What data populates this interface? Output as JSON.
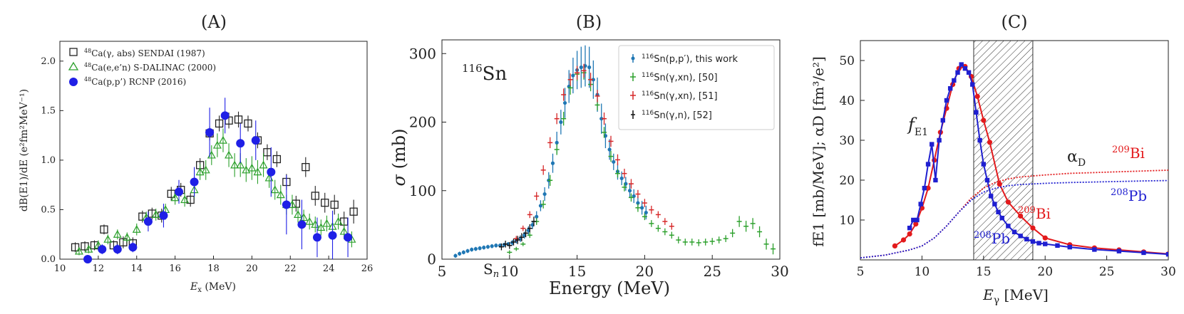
{
  "chart_data": [
    {
      "id": "A",
      "type": "scatter",
      "title": "(A)",
      "xlabel": "Ex (MeV)",
      "xlabel_main": "E",
      "xlabel_sub": "x",
      "xlabel_unit": " (MeV)",
      "ylabel": "dB(E1)/dE (e²fm²MeV⁻¹)",
      "xlim": [
        10,
        26
      ],
      "ylim": [
        0,
        2.2
      ],
      "xticks": [
        "10",
        "12",
        "14",
        "16",
        "18",
        "20",
        "22",
        "24",
        "26"
      ],
      "yticks": [
        "0.0",
        "0.5",
        "1.0",
        "1.5",
        "2.0"
      ],
      "legend_position": "top-left",
      "series": [
        {
          "name": "48Ca(γ,abs) SENDAI (1987)",
          "label_sup": "48",
          "label_text": "Ca(γ, abs) SENDAI (1987)",
          "marker": "open-square",
          "color": "#222222",
          "x": [
            10.8,
            11.3,
            11.8,
            12.3,
            12.8,
            13.3,
            13.8,
            14.3,
            14.8,
            15.3,
            15.8,
            16.3,
            16.8,
            17.3,
            17.8,
            18.3,
            18.8,
            19.3,
            19.8,
            20.3,
            20.8,
            21.3,
            21.8,
            22.3,
            22.8,
            23.3,
            23.8,
            24.3,
            24.8,
            25.3
          ],
          "y": [
            0.12,
            0.13,
            0.14,
            0.3,
            0.14,
            0.17,
            0.16,
            0.43,
            0.46,
            0.44,
            0.66,
            0.7,
            0.6,
            0.95,
            1.27,
            1.37,
            1.4,
            1.41,
            1.37,
            1.2,
            1.08,
            1.01,
            0.78,
            0.56,
            0.93,
            0.64,
            0.57,
            0.55,
            0.38,
            0.48
          ],
          "err": [
            0.05,
            0.05,
            0.05,
            0.05,
            0.05,
            0.06,
            0.06,
            0.06,
            0.06,
            0.07,
            0.07,
            0.07,
            0.07,
            0.07,
            0.07,
            0.08,
            0.08,
            0.08,
            0.08,
            0.08,
            0.08,
            0.08,
            0.08,
            0.08,
            0.1,
            0.1,
            0.1,
            0.1,
            0.1,
            0.12
          ]
        },
        {
          "name": "48Ca(e,e'n) S-DALINAC (2000)",
          "label_sup": "48",
          "label_text": "Ca(e,e’n) S-DALINAC (2000)",
          "marker": "open-triangle",
          "color": "#2ca02c",
          "x": [
            11.0,
            11.5,
            12.0,
            12.5,
            13.0,
            13.5,
            14.0,
            14.5,
            15.0,
            15.5,
            16.0,
            16.5,
            17.0,
            17.3,
            17.6,
            17.9,
            18.2,
            18.5,
            18.8,
            19.1,
            19.4,
            19.7,
            20.0,
            20.3,
            20.6,
            20.9,
            21.2,
            21.5,
            21.8,
            22.1,
            22.4,
            22.7,
            23.0,
            23.3,
            23.6,
            23.9,
            24.2,
            24.5,
            24.8,
            25.2
          ],
          "y": [
            0.08,
            0.1,
            0.14,
            0.2,
            0.25,
            0.22,
            0.3,
            0.42,
            0.45,
            0.5,
            0.62,
            0.6,
            0.7,
            0.88,
            0.9,
            1.05,
            1.15,
            1.2,
            1.05,
            0.95,
            0.95,
            0.9,
            0.92,
            0.88,
            0.95,
            0.82,
            0.7,
            0.65,
            0.55,
            0.55,
            0.45,
            0.42,
            0.38,
            0.35,
            0.32,
            0.36,
            0.33,
            0.38,
            0.28,
            0.2
          ],
          "err": [
            0.04,
            0.04,
            0.05,
            0.05,
            0.05,
            0.05,
            0.06,
            0.06,
            0.06,
            0.06,
            0.07,
            0.07,
            0.08,
            0.08,
            0.1,
            0.1,
            0.12,
            0.12,
            0.12,
            0.12,
            0.12,
            0.12,
            0.12,
            0.12,
            0.12,
            0.1,
            0.1,
            0.1,
            0.1,
            0.1,
            0.08,
            0.08,
            0.08,
            0.08,
            0.08,
            0.08,
            0.08,
            0.08,
            0.08,
            0.08
          ]
        },
        {
          "name": "48Ca(p,p') RCNP (2016)",
          "label_sup": "48",
          "label_text": "Ca(p,p’) RCNP (2016)",
          "marker": "filled-circle",
          "color": "#1f1fe6",
          "x": [
            11.45,
            12.2,
            13.0,
            13.8,
            14.6,
            15.4,
            16.2,
            17.0,
            17.8,
            18.6,
            19.4,
            20.2,
            21.0,
            21.8,
            22.6,
            23.4,
            24.2,
            25.0
          ],
          "y": [
            0.0,
            0.1,
            0.1,
            0.12,
            0.38,
            0.44,
            0.68,
            0.78,
            1.28,
            1.45,
            1.17,
            1.2,
            0.88,
            0.55,
            0.35,
            0.22,
            0.24,
            0.22
          ],
          "err": [
            0.03,
            0.05,
            0.05,
            0.05,
            0.1,
            0.12,
            0.12,
            0.15,
            0.25,
            0.18,
            0.2,
            0.2,
            0.25,
            0.3,
            0.25,
            0.2,
            0.25,
            0.2
          ]
        }
      ]
    },
    {
      "id": "B",
      "type": "scatter",
      "title": "(B)",
      "annotation": "116Sn",
      "annotation_sup": "116",
      "annotation_text": "Sn",
      "xlabel": "Energy (MeV)",
      "ylabel": "σ (mb)",
      "ylabel_symbol": "σ",
      "ylabel_unit": " (mb)",
      "sn_label": "Sn",
      "sn_main": "S",
      "sn_sub": "n",
      "xlim": [
        5,
        30
      ],
      "ylim": [
        0,
        320
      ],
      "xticks": [
        "5",
        "10",
        "15",
        "20",
        "25",
        "30"
      ],
      "yticks": [
        "0",
        "100",
        "200",
        "300"
      ],
      "legend_position": "top-right",
      "series": [
        {
          "name": "116Sn(p,p′), this work",
          "label_sup": "116",
          "label_text": "Sn(p,p′), this work",
          "color": "#1f77b4",
          "x": [
            6.0,
            6.3,
            6.6,
            6.9,
            7.2,
            7.5,
            7.8,
            8.1,
            8.4,
            8.7,
            9.0,
            9.3,
            9.6,
            9.9,
            10.2,
            10.5,
            10.8,
            11.1,
            11.4,
            11.7,
            12.0,
            12.3,
            12.6,
            12.9,
            13.2,
            13.5,
            13.8,
            14.1,
            14.4,
            14.7,
            15.0,
            15.3,
            15.6,
            15.9,
            16.2,
            16.5,
            16.8,
            17.1,
            17.4,
            17.7,
            18.0,
            18.3,
            18.6,
            18.9,
            19.2,
            19.5,
            19.8,
            20.1
          ],
          "y": [
            5,
            8,
            10,
            12,
            14,
            15,
            16,
            17,
            18,
            19,
            20,
            20,
            21,
            22,
            24,
            27,
            30,
            35,
            42,
            50,
            62,
            78,
            95,
            115,
            140,
            170,
            200,
            228,
            252,
            268,
            276,
            280,
            282,
            280,
            262,
            240,
            205,
            180,
            160,
            142,
            128,
            118,
            110,
            100,
            92,
            82,
            75,
            68
          ],
          "err": [
            3,
            3,
            3,
            3,
            3,
            3,
            3,
            3,
            3,
            3,
            3,
            3,
            3,
            3,
            4,
            4,
            5,
            5,
            6,
            6,
            8,
            8,
            10,
            12,
            14,
            16,
            18,
            22,
            24,
            26,
            28,
            30,
            30,
            30,
            28,
            25,
            22,
            18,
            15,
            12,
            12,
            10,
            10,
            10,
            10,
            10,
            10,
            10
          ]
        },
        {
          "name": "116Sn(γ,xn), [50]",
          "label_sup": "116",
          "label_text": "Sn(γ,xn), [50]",
          "color": "#2ca02c",
          "x": [
            10.0,
            10.5,
            11.0,
            11.5,
            12.0,
            12.5,
            13.0,
            13.5,
            14.0,
            14.5,
            15.0,
            15.5,
            16.0,
            16.5,
            17.0,
            17.5,
            18.0,
            18.5,
            19.0,
            19.5,
            20.0,
            20.5,
            21.0,
            21.5,
            22.0,
            22.5,
            23.0,
            23.5,
            24.0,
            24.5,
            25.0,
            25.5,
            26.0,
            26.5,
            27.0,
            27.5,
            28.0,
            28.5,
            29.0,
            29.5
          ],
          "y": [
            10,
            15,
            22,
            35,
            55,
            80,
            115,
            160,
            205,
            250,
            270,
            272,
            255,
            225,
            185,
            150,
            125,
            105,
            90,
            75,
            62,
            52,
            45,
            40,
            35,
            28,
            25,
            25,
            24,
            25,
            26,
            28,
            30,
            38,
            55,
            48,
            52,
            40,
            22,
            15
          ],
          "err": [
            3,
            3,
            3,
            4,
            5,
            6,
            8,
            8,
            10,
            10,
            10,
            10,
            10,
            8,
            8,
            8,
            6,
            6,
            6,
            6,
            5,
            5,
            5,
            5,
            5,
            5,
            5,
            5,
            5,
            5,
            5,
            5,
            5,
            6,
            8,
            8,
            8,
            8,
            8,
            8
          ]
        },
        {
          "name": "116Sn(γ,xn), [51]",
          "label_sup": "116",
          "label_text": "Sn(γ,xn), [51]",
          "color": "#d62728",
          "x": [
            10.5,
            11.0,
            11.5,
            12.0,
            12.5,
            13.0,
            13.5,
            14.0,
            14.5,
            15.0,
            15.5,
            16.0,
            16.5,
            17.0,
            17.5,
            18.0,
            18.5,
            19.0,
            19.5,
            20.0,
            20.5,
            21.0,
            21.5,
            22.0
          ],
          "y": [
            30,
            45,
            65,
            92,
            130,
            170,
            205,
            240,
            262,
            272,
            275,
            262,
            238,
            205,
            172,
            145,
            125,
            110,
            95,
            82,
            72,
            65,
            55,
            48
          ],
          "err": [
            4,
            4,
            5,
            6,
            7,
            8,
            8,
            9,
            9,
            10,
            10,
            10,
            9,
            9,
            8,
            8,
            7,
            7,
            6,
            6,
            6,
            5,
            5,
            5
          ]
        },
        {
          "name": "116Sn(γ,n), [52]",
          "label_sup": "116",
          "label_text": "Sn(γ,n), [52]",
          "color": "#111111",
          "x": [
            9.4,
            9.7,
            10.0,
            10.3,
            10.6,
            10.9,
            11.2,
            11.5,
            11.8
          ],
          "y": [
            18,
            22,
            20,
            25,
            28,
            32,
            38,
            45,
            55
          ],
          "err": [
            5,
            5,
            5,
            5,
            6,
            6,
            6,
            6,
            7
          ]
        }
      ]
    },
    {
      "id": "C",
      "type": "line",
      "title": "(C)",
      "xlabel": "Eγ [MeV]",
      "xlabel_main": "E",
      "xlabel_sub": "γ",
      "xlabel_unit": " [MeV]",
      "ylabel": "fE1 [mb/MeV]; αD [fm³/e²]",
      "xlim": [
        5,
        30
      ],
      "ylim": [
        0,
        55
      ],
      "xticks": [
        "5",
        "10",
        "15",
        "20",
        "25",
        "30"
      ],
      "yticks": [
        "10",
        "20",
        "30",
        "40",
        "50"
      ],
      "shaded_band": [
        14.2,
        19.0
      ],
      "annotations": {
        "fe1_main": "f",
        "fe1_sub": "E1",
        "alpha_main": "α",
        "alpha_sub": "D",
        "bi_sup": "209",
        "bi_text": "Bi",
        "pb_sup": "208",
        "pb_text": "Pb"
      },
      "series": [
        {
          "name": "209Bi fE1",
          "color": "#e31a1c",
          "x": [
            7.8,
            8.5,
            9.0,
            9.5,
            10.0,
            10.5,
            11.0,
            11.5,
            12.0,
            12.5,
            13.0,
            13.5,
            14.0,
            14.5,
            15.0,
            15.5,
            16.3,
            17.0,
            18.0,
            19.0,
            20.0,
            22.0,
            24.0,
            26.0,
            28.0,
            30.0
          ],
          "y": [
            3.5,
            5,
            6.5,
            9,
            13,
            18,
            25,
            32,
            38,
            44,
            48,
            48.5,
            46,
            41,
            35,
            29.5,
            19,
            14.5,
            11,
            8,
            5.5,
            3.8,
            3.0,
            2.5,
            2.0,
            1.5
          ]
        },
        {
          "name": "208Pb fE1",
          "color": "#1f1fd0",
          "x": [
            9.0,
            9.3,
            9.6,
            9.9,
            10.2,
            10.5,
            10.8,
            11.1,
            11.4,
            11.7,
            12.0,
            12.3,
            12.6,
            12.9,
            13.2,
            13.5,
            13.8,
            14.1,
            14.4,
            14.7,
            15.0,
            15.3,
            15.6,
            15.9,
            16.2,
            16.5,
            17.0,
            17.5,
            18.0,
            18.5,
            19.0,
            19.5,
            20.0,
            21.0,
            22.0,
            24.0,
            26.0,
            28.0,
            30.0
          ],
          "y": [
            8,
            10,
            10,
            14,
            18,
            24,
            29,
            20,
            30,
            35,
            40,
            43,
            45,
            47,
            49,
            48,
            47,
            44,
            37,
            30,
            24,
            20,
            16,
            14,
            12,
            10.5,
            8.5,
            7,
            6,
            5.2,
            4.6,
            4.2,
            4.0,
            3.6,
            3.2,
            2.6,
            2.2,
            1.8,
            1.4
          ]
        },
        {
          "name": "209Bi αD",
          "color": "#e31a1c",
          "dashed": true,
          "x": [
            5,
            7,
            9,
            10,
            11,
            12,
            13,
            14,
            15,
            16,
            17,
            18,
            20,
            22,
            25,
            28,
            30
          ],
          "y": [
            0.5,
            1.2,
            2.5,
            3.5,
            5.5,
            8.5,
            12,
            15.5,
            18,
            19.5,
            20.3,
            20.8,
            21.3,
            21.7,
            22.0,
            22.3,
            22.5
          ]
        },
        {
          "name": "208Pb αD",
          "color": "#1f1fd0",
          "dashed": true,
          "x": [
            5,
            7,
            9,
            10,
            11,
            12,
            13,
            14,
            15,
            16,
            17,
            18,
            20,
            22,
            25,
            28,
            30
          ],
          "y": [
            0.5,
            1.2,
            2.5,
            3.5,
            5.5,
            8.5,
            12,
            15,
            17,
            18.0,
            18.6,
            18.9,
            19.2,
            19.4,
            19.6,
            19.8,
            19.9
          ]
        }
      ]
    }
  ]
}
